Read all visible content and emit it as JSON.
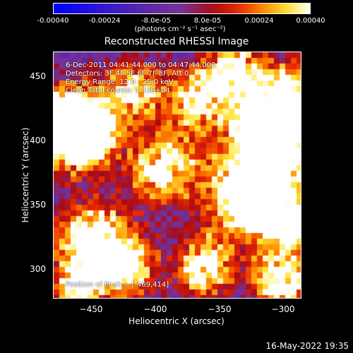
{
  "colorbar": {
    "ticks": [
      "-0.00040",
      "-0.00024",
      "-8.0e-05",
      "8.0e-05",
      "0.00024",
      "0.00040"
    ],
    "unit_label": "(photons cm⁻² s⁻¹ asec⁻²)"
  },
  "title": "Reconstructed RHESSI Image",
  "annotations": {
    "time_range": "6-Dec-2011 04:41:44.000 to 04:47:44.000",
    "detectors": "Detectors: 3F 4F 5F 6F 7F 8F, Att 0",
    "energy": "Energy Range: 12.0 - 25.0 keV",
    "method": "Clean     Total counts: 1.42E+04",
    "peak": "Position of Peak = [-469,414]"
  },
  "axes": {
    "xlabel": "Heliocentric X (arcsec)",
    "ylabel": "Heliocentric Y (arcsec)",
    "xticks": [
      "−450",
      "−400",
      "−350",
      "−300"
    ],
    "yticks": [
      "450",
      "400",
      "350",
      "300"
    ]
  },
  "footer": {
    "date": "16-May-2022 19:35"
  },
  "colors": {
    "low": "#0000ff",
    "mid": "#7030c0",
    "high": "#ff2000",
    "peak": "#ffffff"
  }
}
